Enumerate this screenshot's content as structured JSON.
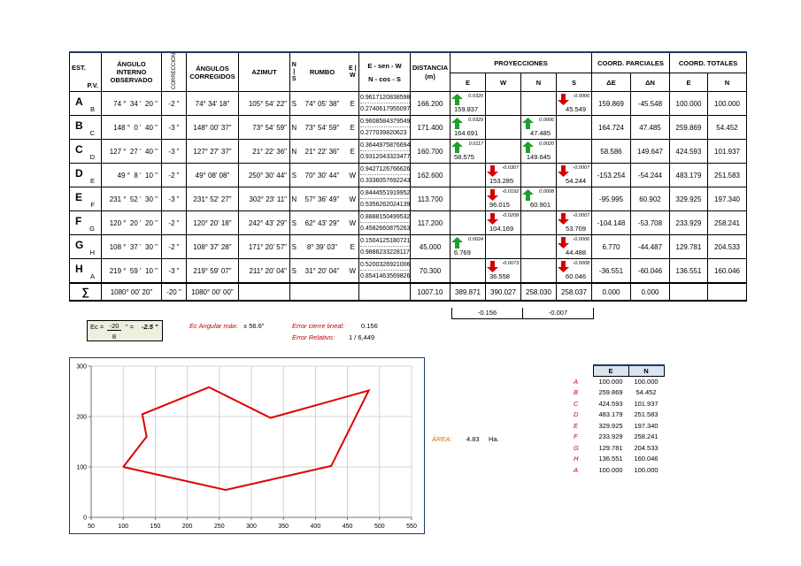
{
  "headers": {
    "est": "EST.",
    "pv": "P.V.",
    "angulo": "ÁNGULO INTERNO OBSERVADO",
    "correccion": "CORRECCIÓN",
    "corregidos": "ÁNGULOS CORREGIDOS",
    "azimut": "AZIMUT",
    "ns": "N | S",
    "rumbo": "RUMBO",
    "ew": "E | W",
    "sencos1": "E - sen - W",
    "sencos2": "N - cos - S",
    "distancia": "DISTANCIA (m)",
    "proyecciones": "PROYECCIONES",
    "parciales": "COORD. PARCIALES",
    "totales": "COORD. TOTALES",
    "e": "E",
    "w": "W",
    "n": "N",
    "s": "S",
    "de": "ΔE",
    "dn": "ΔN"
  },
  "rows": [
    {
      "est": "A",
      "pv": "B",
      "ang_d": "74 °",
      "ang_m": "34 '",
      "ang_s": "20 \"",
      "corr": "-2 \"",
      "corr_ang": "74° 34' 18\"",
      "azimut": "105° 54' 22\"",
      "ns": "S",
      "rumbo": "74° 05' 38\"",
      "ew": "E",
      "sen": "0.9617120838598",
      "cos": "0.2740617955097",
      "dist": "166.200",
      "pe": {
        "coef": "0.0320",
        "val": "159.837",
        "dir": "up"
      },
      "pw": null,
      "pn": null,
      "ps": {
        "coef": "-0.0006",
        "val": "45.549",
        "dir": "down"
      },
      "de": "159.869",
      "dn": "-45.548",
      "te": "100.000",
      "tn": "100.000"
    },
    {
      "est": "B",
      "pv": "C",
      "ang_d": "148 °",
      "ang_m": "0 '",
      "ang_s": "40 \"",
      "corr": "-3 \"",
      "corr_ang": "148° 00' 37\"",
      "azimut": "73° 54' 59\"",
      "ns": "N",
      "rumbo": "73° 54' 59\"",
      "ew": "E",
      "sen": "0.9608584379549",
      "cos": "0.277039820623",
      "dist": "171.400",
      "pe": {
        "coef": "0.0329",
        "val": "164.691",
        "dir": "up"
      },
      "pw": null,
      "pn": {
        "coef": "0.0006",
        "val": "47.485",
        "dir": "up"
      },
      "ps": null,
      "de": "164.724",
      "dn": "47.485",
      "te": "259.869",
      "tn": "54.452"
    },
    {
      "est": "C",
      "pv": "D",
      "ang_d": "127 °",
      "ang_m": "27 '",
      "ang_s": "40 \"",
      "corr": "-3 \"",
      "corr_ang": "127° 27' 37\"",
      "azimut": "21° 22' 36\"",
      "ns": "N",
      "rumbo": "21° 22' 36\"",
      "ew": "E",
      "sen": "0.3644975876694",
      "cos": "0.9312043323477",
      "dist": "160.700",
      "pe": {
        "coef": "0.0117",
        "val": "58.575",
        "dir": "up"
      },
      "pw": null,
      "pn": {
        "coef": "0.0020",
        "val": "149.645",
        "dir": "up"
      },
      "ps": null,
      "de": "58.586",
      "dn": "149.647",
      "te": "424.593",
      "tn": "101.937"
    },
    {
      "est": "D",
      "pv": "E",
      "ang_d": "49 °",
      "ang_m": "8 '",
      "ang_s": "10 \"",
      "corr": "-2 \"",
      "corr_ang": "49° 08' 08\"",
      "azimut": "250° 30' 44\"",
      "ns": "S",
      "rumbo": "70° 30' 44\"",
      "ew": "W",
      "sen": "0.9427126766626",
      "cos": "0.3336057692243",
      "dist": "162.600",
      "pe": null,
      "pw": {
        "coef": "-0.0307",
        "val": "153.285",
        "dir": "down"
      },
      "pn": null,
      "ps": {
        "coef": "-0.0007",
        "val": "54.244",
        "dir": "down"
      },
      "de": "-153.254",
      "dn": "-54.244",
      "te": "483.179",
      "tn": "251.583"
    },
    {
      "est": "E",
      "pv": "F",
      "ang_d": "231 °",
      "ang_m": "52 '",
      "ang_s": "30 \"",
      "corr": "-3 \"",
      "corr_ang": "231° 52' 27\"",
      "azimut": "302° 23' 11\"",
      "ns": "N",
      "rumbo": "57° 36' 49\"",
      "ew": "W",
      "sen": "0.8444551919952",
      "cos": "0.5356262024139",
      "dist": "113.700",
      "pe": null,
      "pw": {
        "coef": "-0.0192",
        "val": "96.015",
        "dir": "down"
      },
      "pn": {
        "coef": "0.0008",
        "val": "60.901",
        "dir": "up"
      },
      "ps": null,
      "de": "-95.995",
      "dn": "60.902",
      "te": "329.925",
      "tn": "197.340"
    },
    {
      "est": "F",
      "pv": "G",
      "ang_d": "120 °",
      "ang_m": "20 '",
      "ang_s": "20 \"",
      "corr": "-2 \"",
      "corr_ang": "120° 20' 18\"",
      "azimut": "242° 43' 29\"",
      "ns": "S",
      "rumbo": "62° 43' 29\"",
      "ew": "W",
      "sen": "0.8888150499532",
      "cos": "0.4582660875263",
      "dist": "117.200",
      "pe": null,
      "pw": {
        "coef": "-0.0208",
        "val": "104.169",
        "dir": "down"
      },
      "pn": null,
      "ps": {
        "coef": "-0.0007",
        "val": "53.709",
        "dir": "down"
      },
      "de": "-104.148",
      "dn": "-53.708",
      "te": "233.929",
      "tn": "258.241"
    },
    {
      "est": "G",
      "pv": "H",
      "ang_d": "108 °",
      "ang_m": "37 '",
      "ang_s": "30 \"",
      "corr": "-2 \"",
      "corr_ang": "108° 37' 28\"",
      "azimut": "171° 20' 57\"",
      "ns": "S",
      "rumbo": "8° 39' 03\"",
      "ew": "E",
      "sen": "0.1504125180721",
      "cos": "0.9886233228117",
      "dist": "45.000",
      "pe": {
        "coef": "0.0024",
        "val": "6.769",
        "dir": "up"
      },
      "pw": null,
      "pn": null,
      "ps": {
        "coef": "-0.0006",
        "val": "44.488",
        "dir": "down"
      },
      "de": "6.770",
      "dn": "-44.487",
      "te": "129.781",
      "tn": "204.533"
    },
    {
      "est": "H",
      "pv": "A",
      "ang_d": "219 °",
      "ang_m": "59 '",
      "ang_s": "10 \"",
      "corr": "-3 \"",
      "corr_ang": "219° 59' 07\"",
      "azimut": "211° 20' 04\"",
      "ns": "S",
      "rumbo": "31° 20' 04\"",
      "ew": "W",
      "sen": "0.5200326921006",
      "cos": "0.8541463569826",
      "dist": "70.300",
      "pe": null,
      "pw": {
        "coef": "-0.0073",
        "val": "36.558",
        "dir": "down"
      },
      "pn": null,
      "ps": {
        "coef": "-0.0008",
        "val": "60.046",
        "dir": "down"
      },
      "de": "-36.551",
      "dn": "-60.046",
      "te": "136.551",
      "tn": "160.046"
    }
  ],
  "sum": {
    "symbol": "∑",
    "ang": "1080° 00' 20\"",
    "corr": "-20 \"",
    "corr_ang": "1080° 00' 00\"",
    "dist": "1007.10",
    "e": "389.871",
    "w": "390.027",
    "n": "258.030",
    "s": "258.037",
    "de": "0.000",
    "dn": "0.000",
    "ew_diff": "-0.156",
    "ns_diff": "-0.007"
  },
  "ec": {
    "label": "Ec =",
    "num": "-20",
    "unit": "\" =",
    "den": "8",
    "result": "-2.5 \""
  },
  "errors": {
    "angular_label": "Ec Angular máx:",
    "angular_value": "± 56.6\"",
    "lineal_label": "Error cierre lineal:",
    "lineal_value": "0.156",
    "relativo_label": "Error Relativo:",
    "relativo_value": "1 /  6,449"
  },
  "area": {
    "label": "ÁREA:",
    "value": "4.83",
    "unit": "Ha."
  },
  "coord_table": {
    "h_e": "E",
    "h_n": "N",
    "points": [
      {
        "name": "A",
        "e": "100.000",
        "n": "100.000"
      },
      {
        "name": "B",
        "e": "259.869",
        "n": "54.452"
      },
      {
        "name": "C",
        "e": "424.593",
        "n": "101.937"
      },
      {
        "name": "D",
        "e": "483.179",
        "n": "251.583"
      },
      {
        "name": "E",
        "e": "329.925",
        "n": "197.340"
      },
      {
        "name": "F",
        "e": "233.929",
        "n": "258.241"
      },
      {
        "name": "G",
        "e": "129.781",
        "n": "204.533"
      },
      {
        "name": "H",
        "e": "136.551",
        "n": "160.046"
      },
      {
        "name": "A",
        "e": "100.000",
        "n": "100.000"
      }
    ]
  },
  "chart_data": {
    "type": "line",
    "x": [
      100.0,
      259.869,
      424.593,
      483.179,
      329.925,
      233.929,
      129.781,
      136.551,
      100.0
    ],
    "series": [
      {
        "values": [
          100.0,
          54.452,
          101.937,
          251.583,
          197.34,
          258.241,
          204.533,
          160.046,
          100.0
        ]
      }
    ],
    "xlim": [
      50,
      550
    ],
    "ylim": [
      0,
      300
    ],
    "x_ticks": [
      "50",
      "100",
      "150",
      "200",
      "250",
      "300",
      "350",
      "400",
      "450",
      "500",
      "550"
    ],
    "y_ticks": [
      "0",
      "100",
      "200",
      "300"
    ],
    "grid": true,
    "line_color": "#e00000"
  }
}
